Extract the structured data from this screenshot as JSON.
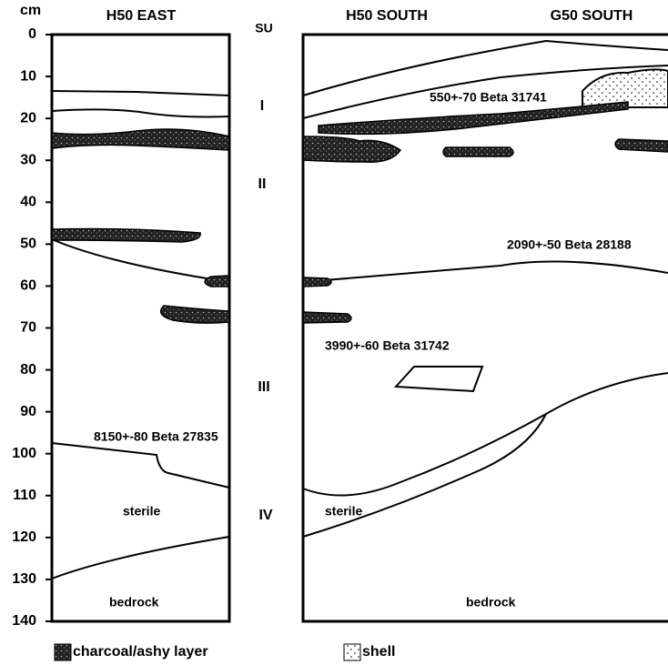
{
  "depth_axis": {
    "unit": "cm",
    "ticks": [
      0,
      10,
      20,
      30,
      40,
      50,
      60,
      70,
      80,
      90,
      100,
      110,
      120,
      130,
      140
    ]
  },
  "headers": {
    "left": "H50 EAST",
    "su": "SU",
    "right_1": "H50 SOUTH",
    "right_2": "G50 SOUTH"
  },
  "units": [
    "I",
    "II",
    "III",
    "IV"
  ],
  "annotations": {
    "date_1": "550+-70 Beta 31741",
    "date_2": "2090+-50 Beta 28188",
    "date_3": "3990+-60 Beta 31742",
    "date_4": "8150+-80 Beta 27835",
    "sterile_left": "sterile",
    "sterile_right": "sterile",
    "bedrock_left": "bedrock",
    "bedrock_right": "bedrock"
  },
  "legend": [
    "charcoal/ashy layer",
    "shell"
  ]
}
